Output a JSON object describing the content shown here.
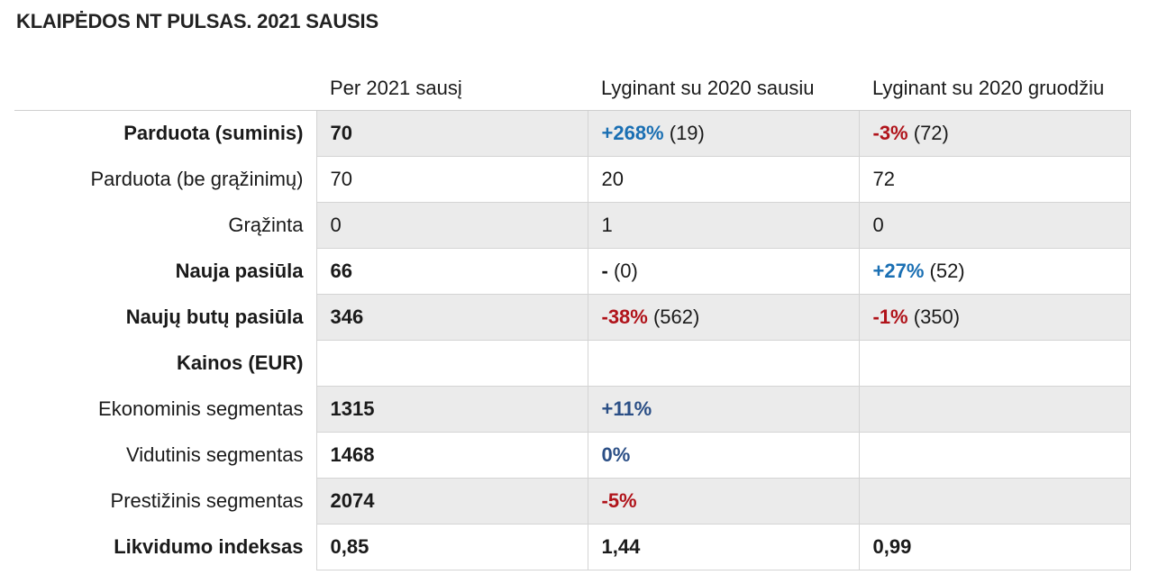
{
  "title": "KLAIPĖDOS NT PULSAS. 2021 SAUSIS",
  "headers": [
    "",
    "Per 2021 sausį",
    "Lyginant su 2020 sausiu",
    "Lyginant su 2020 gruodžiu"
  ],
  "rows": [
    {
      "label": "Parduota (suminis)",
      "bold": true,
      "shaded": true,
      "c1": "70",
      "c2_change": "+268%",
      "c2_rest": " (19)",
      "c3_change": "-3%",
      "c3_rest": " (72)"
    },
    {
      "label": "Parduota (be grąžinimų)",
      "bold": false,
      "shaded": false,
      "c1": "70",
      "c2": "20",
      "c3": "72"
    },
    {
      "label": "Grąžinta",
      "bold": false,
      "shaded": true,
      "c1": "0",
      "c2": "1",
      "c3": "0"
    },
    {
      "label": "Nauja pasiūla",
      "bold": true,
      "shaded": false,
      "c1": "66",
      "c2_change": "-",
      "c2_rest": " (0)",
      "c3_change": "+27%",
      "c3_rest": " (52)"
    },
    {
      "label": "Naujų butų pasiūla",
      "bold": true,
      "shaded": true,
      "c1": "346",
      "c2_change": "-38%",
      "c2_rest": " (562)",
      "c3_change": "-1%",
      "c3_rest": " (350)"
    },
    {
      "label": "Kainos (EUR)",
      "bold": true,
      "shaded": false,
      "c1": "",
      "c2": "",
      "c3": ""
    },
    {
      "label": "Ekonominis segmentas",
      "bold": false,
      "shaded": true,
      "c1": "1315",
      "c2_change": "+11%",
      "c3": ""
    },
    {
      "label": "Vidutinis segmentas",
      "bold": false,
      "shaded": false,
      "c1": "1468",
      "c2_change": "0%",
      "c3": ""
    },
    {
      "label": "Prestižinis segmentas",
      "bold": false,
      "shaded": true,
      "c1": "2074",
      "c2_change": "-5%",
      "c3": ""
    },
    {
      "label": "Likvidumo indeksas",
      "bold": true,
      "shaded": false,
      "c1": "0,85",
      "c2": "1,44",
      "c3": "0,99"
    }
  ],
  "colors": {
    "positive": "#1a6fb3",
    "positive_dark": "#2b4f86",
    "negative": "#b0131a",
    "shade": "#ebebeb"
  }
}
